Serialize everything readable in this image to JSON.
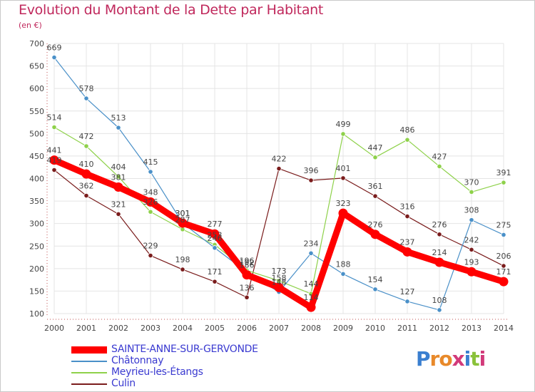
{
  "header": {
    "title": "Evolution du Montant de la Dette par Habitant",
    "unit": "(en €)"
  },
  "logo": {
    "text": "Proxiti"
  },
  "colors": {
    "SAINTE-ANNE-SUR-GERVONDE": "#ff0000",
    "Châtonnay": "#4a90c8",
    "Meyrieu-les-Étangs": "#8ed14a",
    "Culin": "#7a1c1c"
  },
  "chart_data": {
    "type": "line",
    "title": "Evolution du Montant de la Dette par Habitant",
    "ylabel": "(en €)",
    "x": [
      "2000",
      "2001",
      "2002",
      "2003",
      "2004",
      "2005",
      "2006",
      "2007",
      "2008",
      "2009",
      "2010",
      "2011",
      "2012",
      "2013",
      "2014"
    ],
    "ylim": [
      100,
      700
    ],
    "yticks": [
      100,
      150,
      200,
      250,
      300,
      350,
      400,
      450,
      500,
      550,
      600,
      650,
      700
    ],
    "grid": true,
    "legend": "bottom-left",
    "series": [
      {
        "name": "SAINTE-ANNE-SUR-GERVONDE",
        "values": [
          441,
          410,
          381,
          348,
          301,
          277,
          186,
          158,
          114,
          323,
          276,
          237,
          214,
          193,
          171
        ]
      },
      {
        "name": "Châtonnay",
        "values": [
          669,
          578,
          513,
          415,
          301,
          246,
          192,
          148,
          234,
          188,
          154,
          127,
          108,
          308,
          275
        ]
      },
      {
        "name": "Meyrieu-les-Étangs",
        "values": [
          514,
          472,
          404,
          326,
          287,
          253,
          196,
          173,
          144,
          499,
          447,
          486,
          427,
          370,
          391
        ]
      },
      {
        "name": "Culin",
        "values": [
          419,
          362,
          321,
          229,
          198,
          171,
          136,
          422,
          396,
          401,
          361,
          316,
          276,
          242,
          206
        ]
      }
    ]
  }
}
